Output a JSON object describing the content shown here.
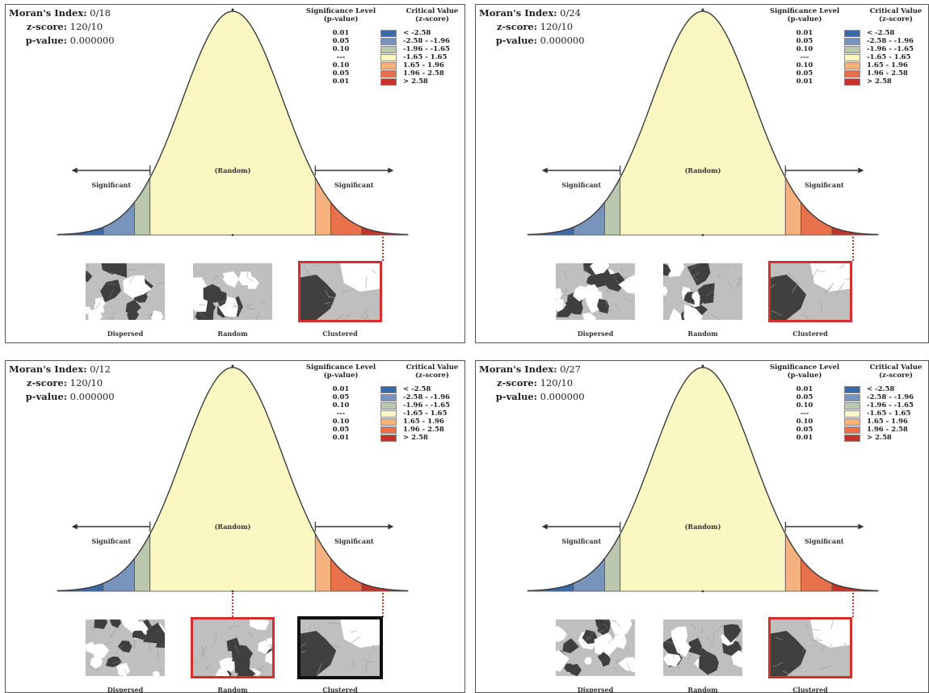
{
  "panels": [
    {
      "moran_label": "Moran's Index:",
      "moran_value": "0/18",
      "z_label": "z-score:",
      "z_value": "120/10",
      "p_label": "p-value:",
      "p_value": "0.000000",
      "selected": "clustered",
      "pointer_at": "right"
    },
    {
      "moran_label": "Moran's Index:",
      "moran_value": "0/24",
      "z_label": "z-score:",
      "z_value": "120/10",
      "p_label": "p-value:",
      "p_value": "0.000000",
      "selected": "clustered",
      "pointer_at": "right"
    },
    {
      "moran_label": "Moran's Index:",
      "moran_value": "0/12",
      "z_label": "z-score:",
      "z_value": "120/10",
      "p_label": "p-value:",
      "p_value": "0.000000",
      "selected": "random",
      "pointer_at": "center-and-right"
    },
    {
      "moran_label": "Moran's Index:",
      "moran_value": "0/27",
      "z_label": "z-score:",
      "z_value": "120/10",
      "p_label": "p-value:",
      "p_value": "0.000000",
      "selected": "clustered",
      "pointer_at": "right"
    }
  ],
  "legend": {
    "sig_header_1": "Significance Level",
    "sig_header_2": "(p-value)",
    "crit_header_1": "Critical Value",
    "crit_header_2": "(z-score)",
    "rows": [
      {
        "p": "0.01",
        "cv": "< -2.58",
        "color": "#3d6aa6"
      },
      {
        "p": "0.05",
        "cv": "-2.58 - -1.96",
        "color": "#7894bd"
      },
      {
        "p": "0.10",
        "cv": "-1.96 - -1.65",
        "color": "#bcc7b0"
      },
      {
        "p": "---",
        "cv": "-1.65 - 1.65",
        "color": "#fbf7c2"
      },
      {
        "p": "0.10",
        "cv": "1.65 - 1.96",
        "color": "#f5b27e"
      },
      {
        "p": "0.05",
        "cv": "1.96 - 2.58",
        "color": "#e8704a"
      },
      {
        "p": "0.01",
        "cv": "> 2.58",
        "color": "#c4342b"
      }
    ]
  },
  "labels": {
    "significant": "Significant",
    "random_center": "(Random)",
    "dispersed": "Dispersed",
    "random": "Random",
    "clustered": "Clustered"
  },
  "chart_data": {
    "type": "area",
    "title": "",
    "description_of_curve": "standard normal distribution of z-score with rejection regions",
    "x": [
      -3.5,
      -2.58,
      -1.96,
      -1.65,
      1.65,
      1.96,
      2.58,
      3.5
    ],
    "regions": [
      {
        "range": [
          -3.5,
          -2.58
        ],
        "p": "0.01",
        "color": "#3d6aa6"
      },
      {
        "range": [
          -2.58,
          -1.96
        ],
        "p": "0.05",
        "color": "#7894bd"
      },
      {
        "range": [
          -1.96,
          -1.65
        ],
        "p": "0.10",
        "color": "#bcc7b0"
      },
      {
        "range": [
          -1.65,
          1.65
        ],
        "p": "---",
        "color": "#fbf7c2"
      },
      {
        "range": [
          1.65,
          1.96
        ],
        "p": "0.10",
        "color": "#f5b27e"
      },
      {
        "range": [
          1.96,
          2.58
        ],
        "p": "0.05",
        "color": "#e8704a"
      },
      {
        "range": [
          2.58,
          3.5
        ],
        "p": "0.01",
        "color": "#c4342b"
      }
    ]
  }
}
